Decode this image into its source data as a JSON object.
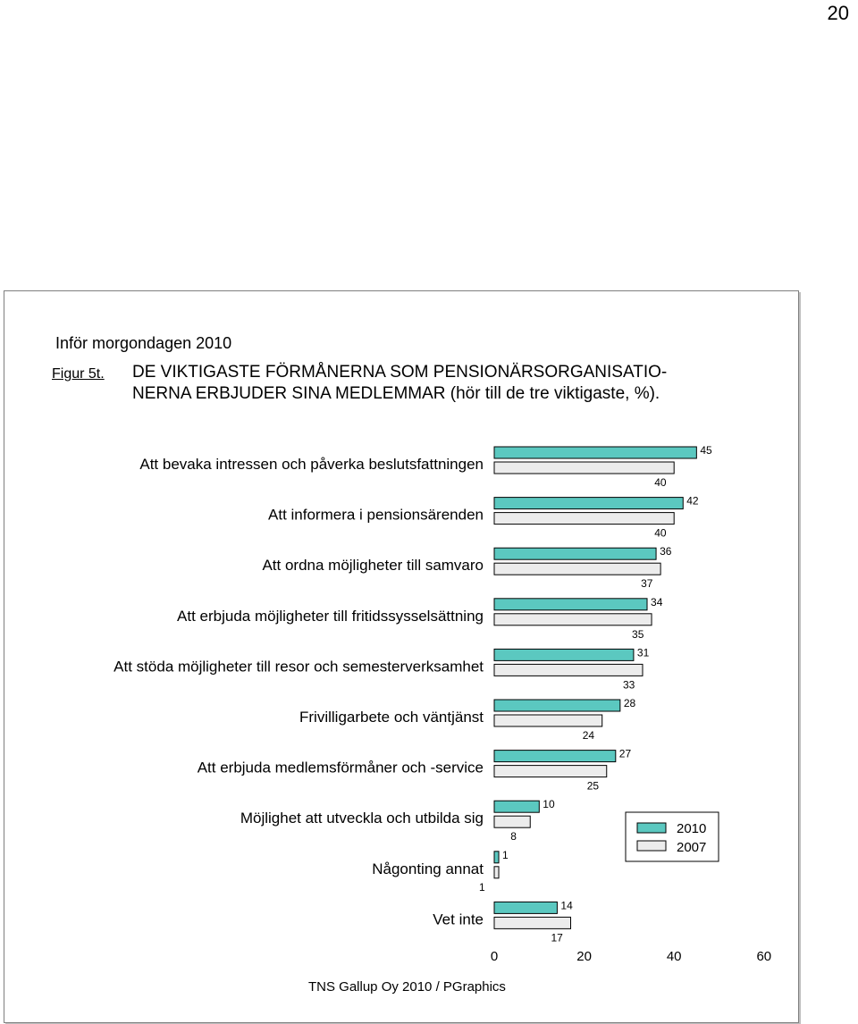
{
  "page_number": "20",
  "header": {
    "supertitle": "Inför  morgondagen 2010",
    "figure_label": "Figur 5t.",
    "title_line1": "DE VIKTIGASTE FÖRMÅNERNA SOM PENSIONÄRSORGANISATIO-",
    "title_line2": "NERNA ERBJUDER SINA MEDLEMMAR (hör till de tre viktigaste, %)."
  },
  "credit": "TNS Gallup Oy 2010 / PGraphics",
  "colors": {
    "series_2010": "#5bc8c0",
    "series_2007": "#ececec",
    "border": "#000000"
  },
  "chart_data": {
    "type": "bar",
    "orientation": "horizontal",
    "title": "DE VIKTIGASTE FÖRMÅNERNA SOM PENSIONÄRSORGANISATIONERNA ERBJUDER SINA MEDLEMMAR (hör till de tre viktigaste, %).",
    "xlabel": "",
    "ylabel": "",
    "xlim": [
      0,
      60
    ],
    "x_ticks": [
      "0",
      "20",
      "40",
      "60"
    ],
    "grid": false,
    "legend_position": "right",
    "categories": [
      "Att bevaka intressen och påverka beslutsfattningen",
      "Att informera i pensionsärenden",
      "Att ordna möjligheter till samvaro",
      "Att erbjuda möjligheter till fritidssysselsättning",
      "Att stöda möjligheter till resor och semesterverksamhet",
      "Frivilligarbete och väntjänst",
      "Att erbjuda medlemsförmåner och -service",
      "Möjlighet att utveckla och utbilda sig",
      "Någonting annat",
      "Vet inte"
    ],
    "series": [
      {
        "name": "2010",
        "color": "#5bc8c0",
        "values": [
          45,
          42,
          36,
          34,
          31,
          28,
          27,
          10,
          1,
          14
        ]
      },
      {
        "name": "2007",
        "color": "#ececec",
        "values": [
          40,
          40,
          37,
          35,
          33,
          24,
          25,
          8,
          1,
          17
        ]
      }
    ]
  }
}
